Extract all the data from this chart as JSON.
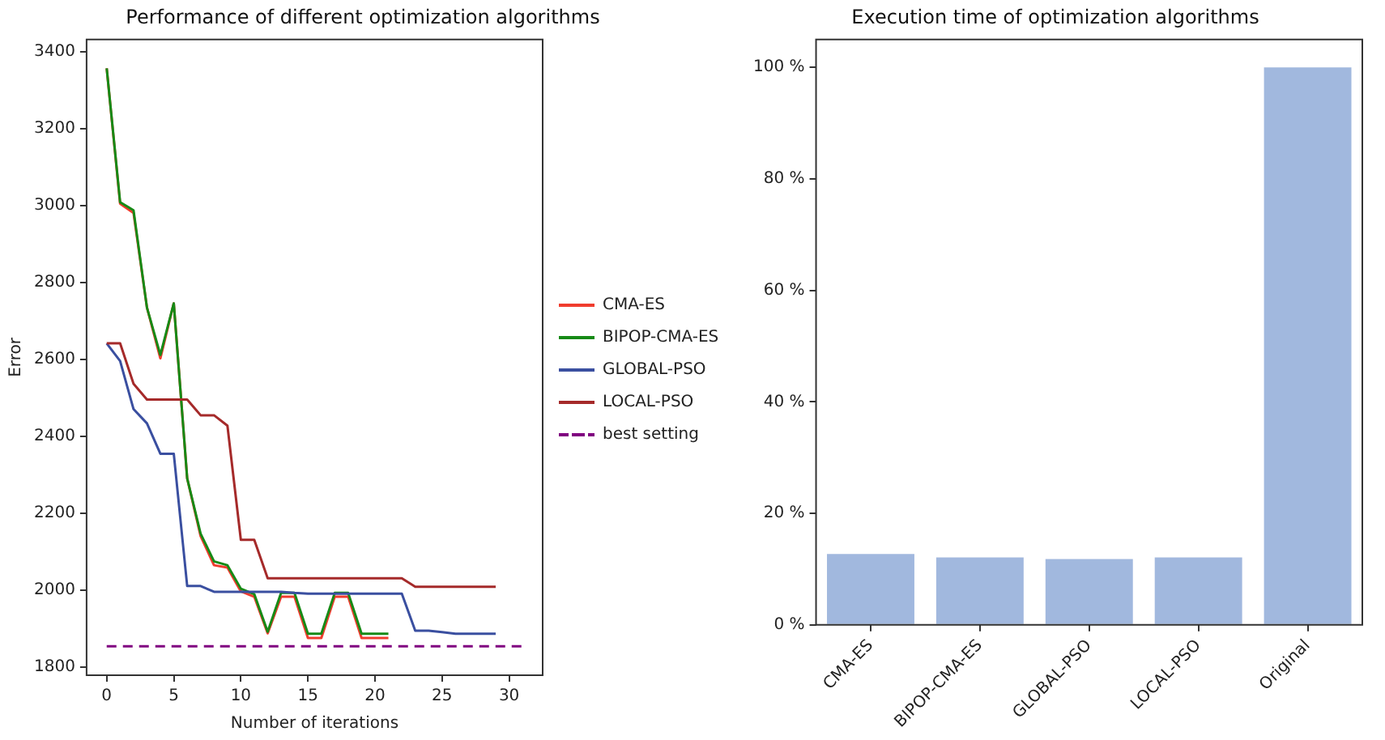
{
  "chart_data": [
    {
      "type": "line",
      "title": "Performance of different optimization algorithms",
      "xlabel": "Number of iterations",
      "ylabel": "Error",
      "xlim": [
        -1.5,
        32.5
      ],
      "xticks": [
        0,
        5,
        10,
        15,
        20,
        25,
        30
      ],
      "ylim": [
        1778,
        3431
      ],
      "yticks": [
        1800,
        2000,
        2200,
        2400,
        2600,
        2800,
        3000,
        3200,
        3400
      ],
      "grid": false,
      "legend": "right",
      "marker": "none",
      "series": [
        {
          "name": "CMA-ES",
          "color": "#f03c2e",
          "x": [
            0,
            1,
            2,
            3,
            4,
            5,
            6,
            7,
            8,
            9,
            10,
            11,
            12,
            13,
            14,
            15,
            16,
            17,
            18,
            19,
            20,
            21
          ],
          "values": [
            3356,
            3004,
            2980,
            2734,
            2602,
            2745,
            2290,
            2140,
            2064,
            2058,
            1996,
            1982,
            1887,
            1982,
            1982,
            1875,
            1875,
            1982,
            1982,
            1875,
            1875,
            1875
          ]
        },
        {
          "name": "BIPOP-CMA-ES",
          "color": "#168a16",
          "x": [
            0,
            1,
            2,
            3,
            4,
            5,
            6,
            7,
            8,
            9,
            10,
            11,
            12,
            13,
            14,
            15,
            16,
            17,
            18,
            19,
            20,
            21
          ],
          "values": [
            3356,
            3008,
            2987,
            2734,
            2611,
            2745,
            2290,
            2146,
            2074,
            2064,
            2003,
            1989,
            1891,
            1992,
            1992,
            1886,
            1886,
            1992,
            1992,
            1886,
            1886,
            1886
          ]
        },
        {
          "name": "GLOBAL-PSO",
          "color": "#3a4fa0",
          "x": [
            0,
            1,
            2,
            3,
            4,
            5,
            6,
            7,
            8,
            9,
            10,
            11,
            12,
            13,
            14,
            15,
            16,
            17,
            18,
            19,
            20,
            21,
            22,
            23,
            24,
            25,
            26,
            27,
            28,
            29
          ],
          "values": [
            2641,
            2595,
            2470,
            2433,
            2354,
            2354,
            2010,
            2010,
            1995,
            1995,
            1995,
            1995,
            1995,
            1995,
            1992,
            1990,
            1990,
            1990,
            1990,
            1990,
            1990,
            1990,
            1990,
            1894,
            1894,
            1890,
            1886,
            1886,
            1886,
            1886
          ]
        },
        {
          "name": "LOCAL-PSO",
          "color": "#a52a2a",
          "x": [
            0,
            1,
            2,
            3,
            4,
            5,
            6,
            7,
            8,
            9,
            10,
            11,
            12,
            13,
            14,
            15,
            16,
            17,
            18,
            19,
            20,
            21,
            22,
            23,
            24,
            25,
            26,
            27,
            28,
            29
          ],
          "values": [
            2641,
            2641,
            2536,
            2495,
            2495,
            2495,
            2495,
            2454,
            2454,
            2427,
            2130,
            2130,
            2030,
            2030,
            2030,
            2030,
            2030,
            2030,
            2030,
            2030,
            2030,
            2030,
            2030,
            2008,
            2008,
            2008,
            2008,
            2008,
            2008,
            2008
          ]
        },
        {
          "name": "best setting",
          "color": "#800080",
          "line_style": "dashed",
          "x": [
            0,
            31
          ],
          "values": [
            1853,
            1853
          ]
        }
      ]
    },
    {
      "type": "bar",
      "title": "Execution time of optimization algorithms",
      "categories": [
        "CMA-ES",
        "BIPOP-CMA-ES",
        "GLOBAL-PSO",
        "LOCAL-PSO",
        "Original"
      ],
      "values": [
        12.7,
        12.1,
        11.8,
        12.1,
        100
      ],
      "color": "#a1b8de",
      "ylim": [
        0,
        105
      ],
      "yticks": [
        {
          "value": 0,
          "label": "0 %"
        },
        {
          "value": 20,
          "label": "20 %"
        },
        {
          "value": 40,
          "label": "40 %"
        },
        {
          "value": 60,
          "label": "60 %"
        },
        {
          "value": 80,
          "label": "80 %"
        },
        {
          "value": 100,
          "label": "100 %"
        }
      ],
      "grid": false,
      "legend": false
    }
  ]
}
